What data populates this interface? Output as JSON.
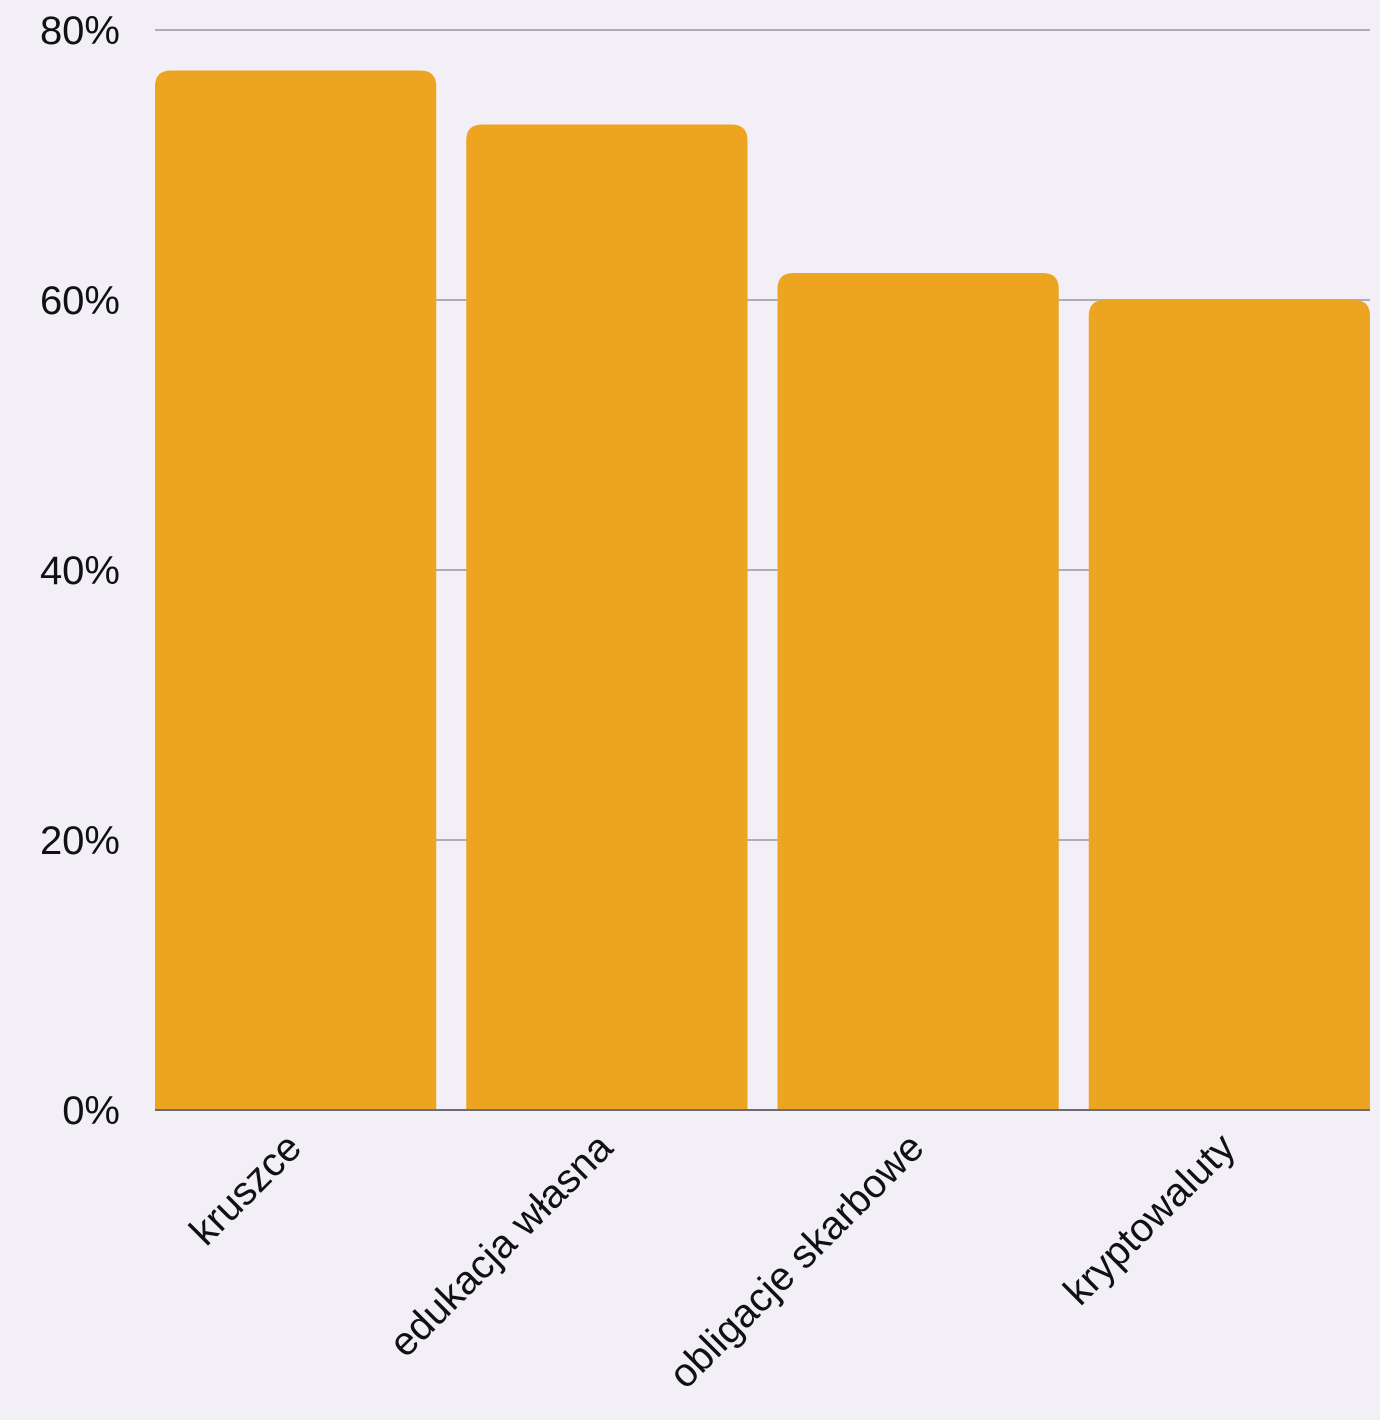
{
  "chart_data": {
    "type": "bar",
    "categories": [
      "kruszce",
      "edukacja własna",
      "obligacje skarbowe",
      "kryptowaluty"
    ],
    "values": [
      77,
      73,
      62,
      60
    ],
    "title": "",
    "xlabel": "",
    "ylabel": "",
    "ylim": [
      0,
      80
    ],
    "y_ticks": [
      "0%",
      "20%",
      "40%",
      "60%",
      "80%"
    ],
    "y_tick_values": [
      0,
      20,
      40,
      60,
      80
    ],
    "grid": true,
    "legend": "none",
    "bar_color": "#eda521"
  }
}
